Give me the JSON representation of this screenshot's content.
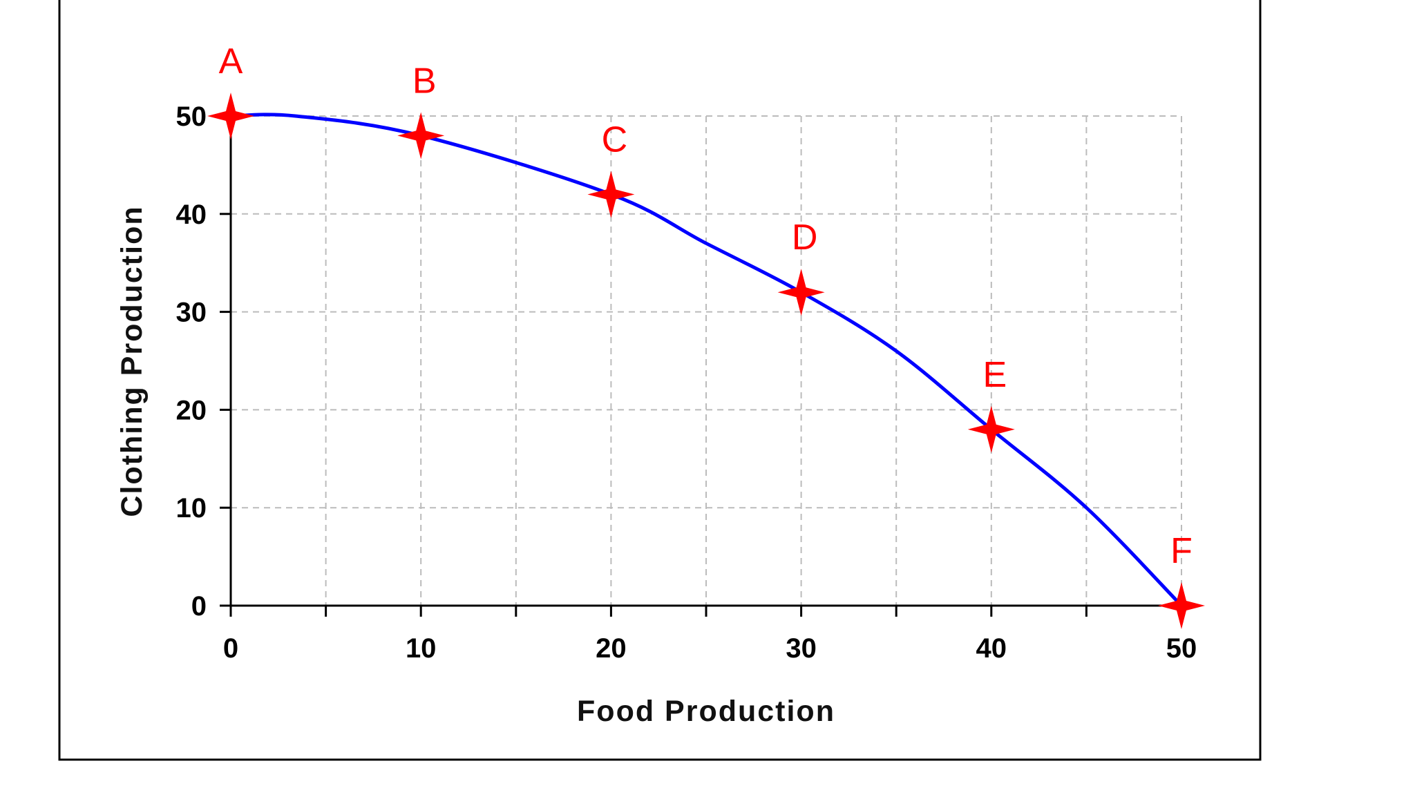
{
  "chart_data": {
    "type": "line",
    "title": "",
    "xlabel": "Food Production",
    "ylabel": "Clothing Production",
    "xlim": [
      0,
      50
    ],
    "ylim": [
      0,
      50
    ],
    "x_ticks": [
      0,
      10,
      20,
      30,
      40,
      50
    ],
    "y_ticks": [
      0,
      10,
      20,
      30,
      40,
      50
    ],
    "grid": true,
    "legend": "none",
    "curve": {
      "x": [
        0,
        3.4,
        10,
        20,
        25,
        30,
        35,
        40,
        45,
        50
      ],
      "y": [
        50,
        50,
        48,
        42,
        37,
        32,
        26,
        18,
        10,
        0
      ]
    },
    "points": [
      {
        "label": "A",
        "x": 0,
        "y": 50
      },
      {
        "label": "B",
        "x": 10,
        "y": 48
      },
      {
        "label": "C",
        "x": 20,
        "y": 42
      },
      {
        "label": "D",
        "x": 30,
        "y": 32
      },
      {
        "label": "E",
        "x": 40,
        "y": 18
      },
      {
        "label": "F",
        "x": 50,
        "y": 0
      }
    ],
    "colors": {
      "curve": "#0000ff",
      "markers": "#ff0000",
      "labels": "#ff0000",
      "grid": "#bbbbbb",
      "axes": "#000000",
      "frame": "#000000"
    }
  }
}
